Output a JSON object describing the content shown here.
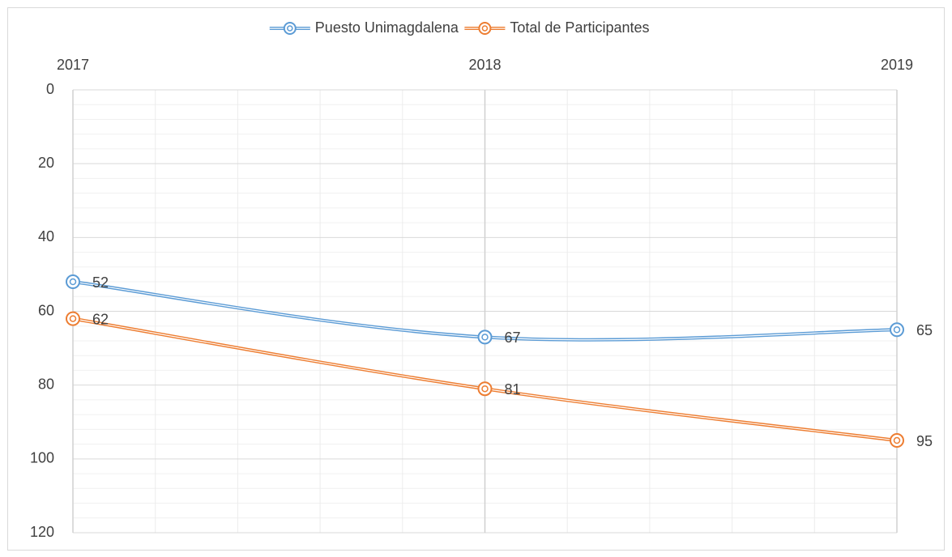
{
  "chart_data": {
    "type": "line",
    "categories": [
      "2017",
      "2018",
      "2019"
    ],
    "series": [
      {
        "name": "Puesto Unimagdalena",
        "color": "#5b9bd5",
        "values": [
          52,
          67,
          65
        ]
      },
      {
        "name": "Total de Participantes",
        "color": "#ed7d31",
        "values": [
          62,
          81,
          95
        ]
      }
    ],
    "ylim": [
      0,
      120
    ],
    "yticks": [
      0,
      20,
      40,
      60,
      80,
      100,
      120
    ],
    "y_reversed": true,
    "grid": true,
    "legend": "top",
    "data_labels": true
  }
}
